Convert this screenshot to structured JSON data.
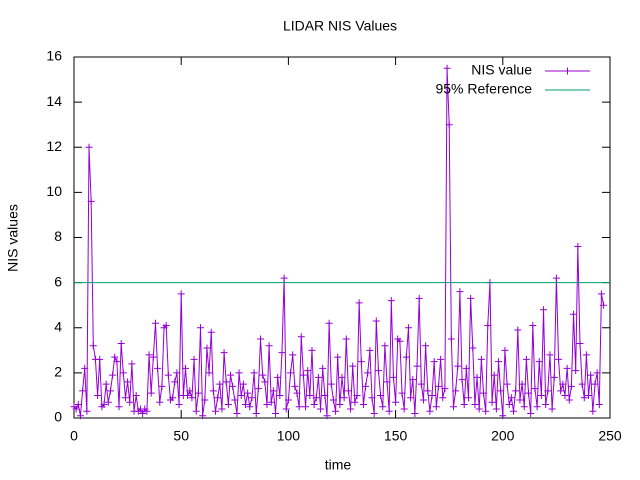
{
  "chart_data": {
    "type": "line",
    "title": "LIDAR NIS Values",
    "xlabel": "time",
    "ylabel": "NIS values",
    "xlim": [
      0,
      250
    ],
    "xticks": [
      0,
      50,
      100,
      150,
      200,
      250
    ],
    "ylim": [
      0,
      16
    ],
    "yticks": [
      0,
      2,
      4,
      6,
      8,
      10,
      12,
      14,
      16
    ],
    "legend": "top-right",
    "x": [
      0,
      1,
      2,
      3,
      4,
      5,
      6,
      7,
      8,
      9,
      10,
      11,
      12,
      13,
      14,
      15,
      16,
      17,
      18,
      19,
      20,
      21,
      22,
      23,
      24,
      25,
      26,
      27,
      28,
      29,
      30,
      31,
      32,
      33,
      34,
      35,
      36,
      37,
      38,
      39,
      40,
      41,
      42,
      43,
      44,
      45,
      46,
      47,
      48,
      49,
      50,
      51,
      52,
      53,
      54,
      55,
      56,
      57,
      58,
      59,
      60,
      61,
      62,
      63,
      64,
      65,
      66,
      67,
      68,
      69,
      70,
      71,
      72,
      73,
      74,
      75,
      76,
      77,
      78,
      79,
      80,
      81,
      82,
      83,
      84,
      85,
      86,
      87,
      88,
      89,
      90,
      91,
      92,
      93,
      94,
      95,
      96,
      97,
      98,
      99,
      100,
      101,
      102,
      103,
      104,
      105,
      106,
      107,
      108,
      109,
      110,
      111,
      112,
      113,
      114,
      115,
      116,
      117,
      118,
      119,
      120,
      121,
      122,
      123,
      124,
      125,
      126,
      127,
      128,
      129,
      130,
      131,
      132,
      133,
      134,
      135,
      136,
      137,
      138,
      139,
      140,
      141,
      142,
      143,
      144,
      145,
      146,
      147,
      148,
      149,
      150,
      151,
      152,
      153,
      154,
      155,
      156,
      157,
      158,
      159,
      160,
      161,
      162,
      163,
      164,
      165,
      166,
      167,
      168,
      169,
      170,
      171,
      172,
      173,
      174,
      175,
      176,
      177,
      178,
      179,
      180,
      181,
      182,
      183,
      184,
      185,
      186,
      187,
      188,
      189,
      190,
      191,
      192,
      193,
      194,
      195,
      196,
      197,
      198,
      199,
      200,
      201,
      202,
      203,
      204,
      205,
      206,
      207,
      208,
      209,
      210,
      211,
      212,
      213,
      214,
      215,
      216,
      217,
      218,
      219,
      220,
      221,
      222,
      223,
      224,
      225,
      226,
      227,
      228,
      229,
      230,
      231,
      232,
      233,
      234,
      235,
      236,
      237,
      238,
      239,
      240,
      241,
      242,
      243,
      244,
      245,
      246,
      247
    ],
    "series": [
      {
        "name": "NIS value",
        "color": "#9400d3",
        "values": [
          0.5,
          0.4,
          0.6,
          0.1,
          1.2,
          2.2,
          0.3,
          12.0,
          9.6,
          3.2,
          2.6,
          1.0,
          2.6,
          0.5,
          0.6,
          1.5,
          0.7,
          1.2,
          1.9,
          2.7,
          2.5,
          0.5,
          3.3,
          2.0,
          0.9,
          1.6,
          0.7,
          2.4,
          0.3,
          1.0,
          0.3,
          0.4,
          0.2,
          0.4,
          0.3,
          2.8,
          1.1,
          2.7,
          4.2,
          2.2,
          0.7,
          1.4,
          4.0,
          4.1,
          1.9,
          0.8,
          0.9,
          1.6,
          2.0,
          0.6,
          5.5,
          1.0,
          2.2,
          1.0,
          1.2,
          0.9,
          2.6,
          0.3,
          1.1,
          4.0,
          0.1,
          0.8,
          3.1,
          2.0,
          3.8,
          1.2,
          0.3,
          0.9,
          1.5,
          0.4,
          2.9,
          1.6,
          0.6,
          1.9,
          1.4,
          0.8,
          0.2,
          2.0,
          1.0,
          1.5,
          0.6,
          1.1,
          0.5,
          0.9,
          2.0,
          0.2,
          1.3,
          3.5,
          1.9,
          1.6,
          0.6,
          3.2,
          0.7,
          1.2,
          0.2,
          1.8,
          1.0,
          2.9,
          6.2,
          0.4,
          0.8,
          2.0,
          2.8,
          1.4,
          1.1,
          0.5,
          3.6,
          1.9,
          0.5,
          2.1,
          1.0,
          3.0,
          0.6,
          0.9,
          1.8,
          0.4,
          2.2,
          1.0,
          0.1,
          4.2,
          1.5,
          0.8,
          0.3,
          2.7,
          0.6,
          1.8,
          0.9,
          3.5,
          1.2,
          0.4,
          2.3,
          0.7,
          1.0,
          5.1,
          2.5,
          0.6,
          1.4,
          2.0,
          3.0,
          0.9,
          0.2,
          4.3,
          2.1,
          1.0,
          0.5,
          3.2,
          1.6,
          0.3,
          5.2,
          1.8,
          0.7,
          3.5,
          3.4,
          1.1,
          0.4,
          2.7,
          4.0,
          0.9,
          1.7,
          0.2,
          2.3,
          5.3,
          1.5,
          0.8,
          3.2,
          1.2,
          0.3,
          1.0,
          2.5,
          0.5,
          1.4,
          2.6,
          0.9,
          1.3,
          15.5,
          13.0,
          3.5,
          0.5,
          1.2,
          2.3,
          5.6,
          1.7,
          0.6,
          2.2,
          0.9,
          5.3,
          3.1,
          0.6,
          1.8,
          0.4,
          2.6,
          1.1,
          0.3,
          4.1,
          6.0,
          0.7,
          1.9,
          0.4,
          2.5,
          1.2,
          0.1,
          3.0,
          1.5,
          0.6,
          0.9,
          0.3,
          1.2,
          3.9,
          0.8,
          1.5,
          0.5,
          2.6,
          1.1,
          0.2,
          4.1,
          1.3,
          0.5,
          2.5,
          1.0,
          4.8,
          0.6,
          1.2,
          2.8,
          0.4,
          1.8,
          6.2,
          2.6,
          1.2,
          1.5,
          1.0,
          2.2,
          0.8,
          1.4,
          4.6,
          2.1,
          7.6,
          3.3,
          1.5,
          0.9,
          2.8,
          1.0,
          1.9,
          0.3,
          1.5,
          2.0,
          0.6,
          5.5,
          5.0
        ]
      }
    ],
    "reference": {
      "name": "95% Reference",
      "color": "#009e73",
      "value": 6
    }
  }
}
